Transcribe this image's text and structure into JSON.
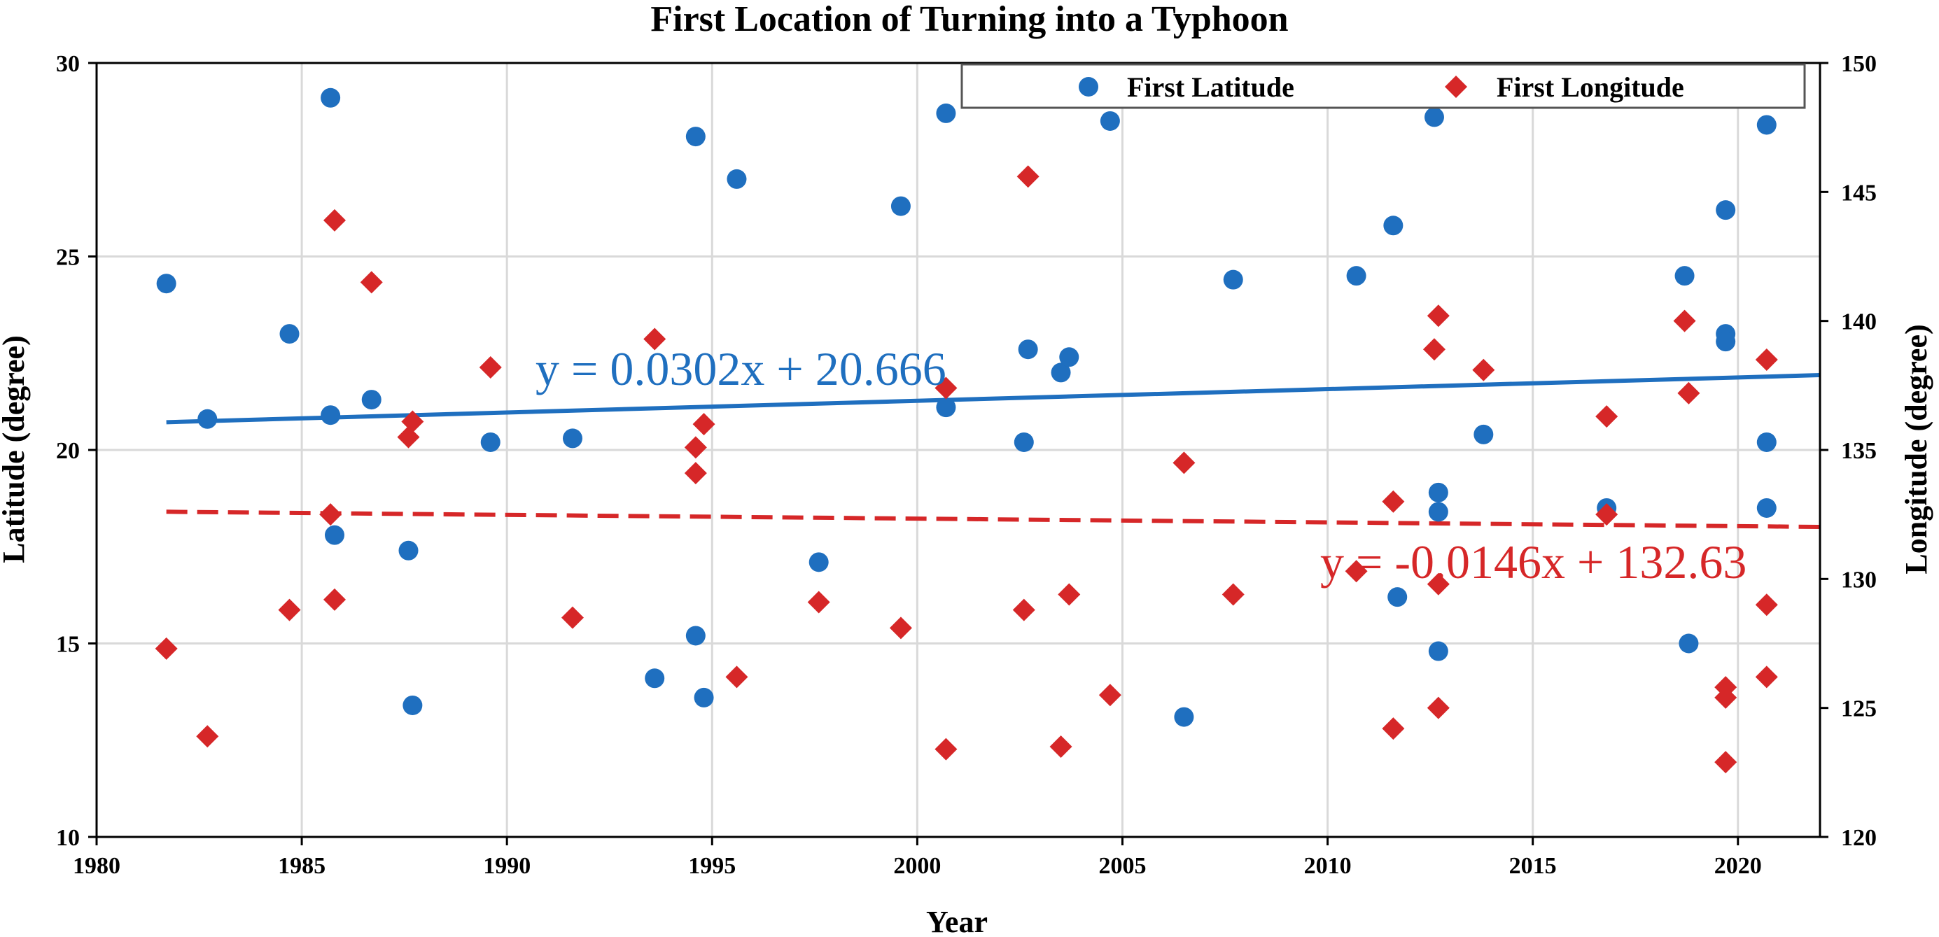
{
  "chart_data": {
    "type": "scatter",
    "title": "First Location of Turning into a Typhoon",
    "xlabel": "Year",
    "ylabel_left": "Latitude (degree)",
    "ylabel_right": "Longitude (degree)",
    "xlim": [
      1980,
      2022
    ],
    "ylim_left": [
      10,
      30
    ],
    "ylim_right": [
      120,
      150
    ],
    "x_ticks": [
      "1980",
      "1985",
      "1990",
      "1995",
      "2000",
      "2005",
      "2010",
      "2015",
      "2020"
    ],
    "y_left_ticks": [
      "10",
      "15",
      "20",
      "25",
      "30"
    ],
    "y_right_ticks": [
      "120",
      "125",
      "130",
      "135",
      "140",
      "145",
      "150"
    ],
    "grid": true,
    "legend_position": "top-right",
    "colors": {
      "latitude": "#1f6fbf",
      "longitude": "#d62728"
    },
    "series": [
      {
        "name": "First Latitude",
        "axis": "left",
        "marker": "circle",
        "points": [
          [
            1981.7,
            24.3
          ],
          [
            1982.7,
            20.8
          ],
          [
            1984.7,
            23.0
          ],
          [
            1985.7,
            29.1
          ],
          [
            1985.7,
            20.9
          ],
          [
            1985.8,
            17.8
          ],
          [
            1986.7,
            21.3
          ],
          [
            1987.6,
            17.4
          ],
          [
            1987.7,
            13.4
          ],
          [
            1989.6,
            20.2
          ],
          [
            1991.6,
            20.3
          ],
          [
            1993.6,
            14.1
          ],
          [
            1994.6,
            28.1
          ],
          [
            1994.6,
            15.2
          ],
          [
            1994.8,
            13.6
          ],
          [
            1995.6,
            27.0
          ],
          [
            1997.6,
            17.1
          ],
          [
            1999.6,
            26.3
          ],
          [
            2000.7,
            28.7
          ],
          [
            2000.7,
            21.1
          ],
          [
            2002.6,
            20.2
          ],
          [
            2002.7,
            22.6
          ],
          [
            2003.5,
            22.0
          ],
          [
            2003.7,
            22.4
          ],
          [
            2004.7,
            28.5
          ],
          [
            2006.5,
            13.1
          ],
          [
            2007.7,
            24.4
          ],
          [
            2010.7,
            24.5
          ],
          [
            2011.6,
            25.8
          ],
          [
            2011.7,
            16.2
          ],
          [
            2012.6,
            28.6
          ],
          [
            2012.7,
            18.9
          ],
          [
            2012.7,
            18.4
          ],
          [
            2012.7,
            14.8
          ],
          [
            2013.8,
            20.4
          ],
          [
            2016.8,
            18.5
          ],
          [
            2018.7,
            24.5
          ],
          [
            2018.8,
            15.0
          ],
          [
            2019.7,
            26.2
          ],
          [
            2019.7,
            23.0
          ],
          [
            2019.7,
            22.8
          ],
          [
            2020.7,
            28.4
          ],
          [
            2020.7,
            20.2
          ],
          [
            2020.7,
            18.5
          ]
        ],
        "trendline": {
          "slope": 0.0302,
          "intercept": 20.666,
          "x_start": 1981.7,
          "x_end": 2022,
          "label": "y = 0.0302x + 20.666"
        }
      },
      {
        "name": "First Longitude",
        "axis": "right",
        "marker": "diamond",
        "points": [
          [
            1981.7,
            127.3
          ],
          [
            1982.7,
            123.9
          ],
          [
            1984.7,
            128.8
          ],
          [
            1985.7,
            132.5
          ],
          [
            1985.8,
            143.9
          ],
          [
            1985.8,
            129.2
          ],
          [
            1986.7,
            141.5
          ],
          [
            1987.6,
            135.5
          ],
          [
            1987.7,
            136.1
          ],
          [
            1989.6,
            138.2
          ],
          [
            1991.6,
            128.5
          ],
          [
            1993.6,
            139.3
          ],
          [
            1994.6,
            135.1
          ],
          [
            1994.6,
            134.1
          ],
          [
            1994.8,
            136.0
          ],
          [
            1995.6,
            126.2
          ],
          [
            1997.6,
            129.1
          ],
          [
            1999.6,
            128.1
          ],
          [
            2000.7,
            123.4
          ],
          [
            2000.7,
            137.4
          ],
          [
            2002.6,
            128.8
          ],
          [
            2002.7,
            145.6
          ],
          [
            2003.5,
            123.5
          ],
          [
            2003.7,
            129.4
          ],
          [
            2004.7,
            125.5
          ],
          [
            2006.5,
            134.5
          ],
          [
            2007.7,
            129.4
          ],
          [
            2010.7,
            130.3
          ],
          [
            2011.6,
            133.0
          ],
          [
            2011.6,
            124.2
          ],
          [
            2012.6,
            138.9
          ],
          [
            2012.7,
            140.2
          ],
          [
            2012.7,
            129.8
          ],
          [
            2012.7,
            125.0
          ],
          [
            2013.8,
            138.1
          ],
          [
            2016.8,
            136.3
          ],
          [
            2016.8,
            132.5
          ],
          [
            2018.7,
            140.0
          ],
          [
            2018.8,
            137.2
          ],
          [
            2019.7,
            125.8
          ],
          [
            2019.7,
            125.4
          ],
          [
            2019.7,
            122.9
          ],
          [
            2020.7,
            138.5
          ],
          [
            2020.7,
            129.0
          ],
          [
            2020.7,
            126.2
          ]
        ],
        "trendline": {
          "slope": -0.0146,
          "intercept": 132.63,
          "x_start": 1981.7,
          "x_end": 2022,
          "label": "y = -0.0146x + 132.63"
        }
      }
    ]
  }
}
